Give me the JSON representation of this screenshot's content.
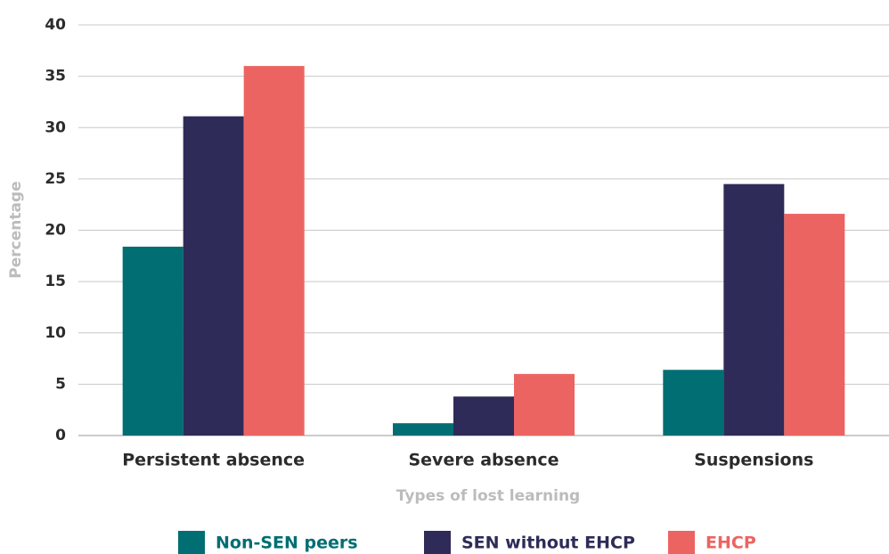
{
  "chart_data": {
    "type": "bar",
    "x_label": "Types of lost learning",
    "y_label": "Percentage",
    "categories": [
      "Persistent absence",
      "Severe absence",
      "Suspensions"
    ],
    "series": [
      {
        "name": "Non-SEN peers",
        "color": "#006e72",
        "values": [
          18.4,
          1.2,
          6.4
        ]
      },
      {
        "name": "SEN without EHCP",
        "color": "#2e2b58",
        "values": [
          31.1,
          3.8,
          24.5
        ]
      },
      {
        "name": "EHCP",
        "color": "#ec6461",
        "values": [
          36.0,
          6.0,
          21.6
        ]
      }
    ],
    "ylim": [
      0,
      40
    ],
    "yticks": [
      0,
      5,
      10,
      15,
      20,
      25,
      30,
      35,
      40
    ],
    "grid": true,
    "legend": "bottom"
  }
}
